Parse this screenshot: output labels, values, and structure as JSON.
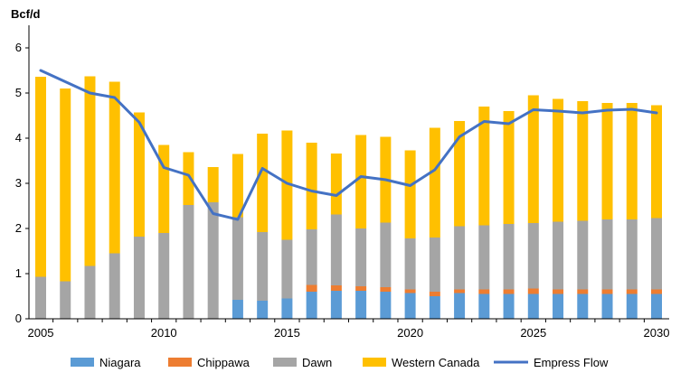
{
  "chart_data": {
    "type": "bar",
    "stacked": true,
    "ylabel": "Bcf/d",
    "ylim": [
      0,
      6.5
    ],
    "yticks": [
      0,
      1,
      2,
      3,
      4,
      5,
      6
    ],
    "xtick_labels": [
      "2005",
      "2010",
      "2015",
      "2020",
      "2025",
      "2030"
    ],
    "years": [
      2005,
      2006,
      2007,
      2008,
      2009,
      2010,
      2011,
      2012,
      2013,
      2014,
      2015,
      2016,
      2017,
      2018,
      2019,
      2020,
      2021,
      2022,
      2023,
      2024,
      2025,
      2026,
      2027,
      2028,
      2029,
      2030
    ],
    "grid": false,
    "legend_position": "bottom",
    "series": [
      {
        "name": "Niagara",
        "color": "#5B9BD5",
        "values": [
          0,
          0,
          0,
          0,
          0,
          0,
          0,
          0,
          0.42,
          0.4,
          0.45,
          0.6,
          0.62,
          0.62,
          0.6,
          0.57,
          0.5,
          0.57,
          0.55,
          0.55,
          0.55,
          0.55,
          0.55,
          0.55,
          0.55,
          0.55
        ]
      },
      {
        "name": "Chippawa",
        "color": "#ED7D31",
        "values": [
          0,
          0,
          0,
          0,
          0,
          0,
          0,
          0,
          0,
          0,
          0,
          0.15,
          0.12,
          0.1,
          0.1,
          0.08,
          0.1,
          0.08,
          0.1,
          0.1,
          0.12,
          0.1,
          0.1,
          0.1,
          0.1,
          0.1
        ]
      },
      {
        "name": "Dawn",
        "color": "#A5A5A5",
        "values": [
          0.93,
          0.83,
          1.17,
          1.45,
          1.82,
          1.9,
          2.52,
          2.58,
          1.83,
          1.52,
          1.3,
          1.23,
          1.57,
          1.28,
          1.43,
          1.13,
          1.2,
          1.4,
          1.42,
          1.45,
          1.45,
          1.5,
          1.52,
          1.55,
          1.55,
          1.58
        ]
      },
      {
        "name": "Western Canada",
        "color": "#FFC000",
        "values": [
          4.43,
          4.27,
          4.2,
          3.8,
          2.75,
          1.95,
          1.17,
          0.78,
          1.4,
          2.18,
          2.42,
          1.92,
          1.35,
          2.07,
          1.9,
          1.95,
          2.43,
          2.33,
          2.63,
          2.5,
          2.83,
          2.72,
          2.65,
          2.58,
          2.58,
          2.5
        ]
      }
    ],
    "line_series": {
      "name": "Empress Flow",
      "color": "#4472C4",
      "values": [
        5.5,
        5.25,
        5.0,
        4.9,
        4.35,
        3.35,
        3.18,
        2.33,
        2.2,
        3.33,
        3.0,
        2.83,
        2.73,
        3.15,
        3.08,
        2.95,
        3.3,
        4.03,
        4.37,
        4.32,
        4.63,
        4.6,
        4.56,
        4.62,
        4.64,
        4.56
      ]
    }
  }
}
